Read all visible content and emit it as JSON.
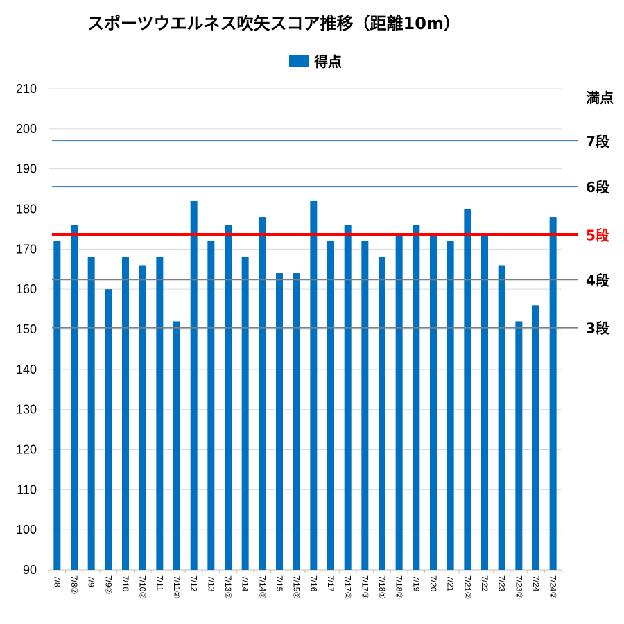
{
  "chart_data": {
    "type": "bar",
    "title": "スポーツウエルネス吹矢スコア推移（距離10m）",
    "series": [
      {
        "name": "得点",
        "color": "#0070C0",
        "values": [
          172,
          176,
          168,
          160,
          168,
          166,
          168,
          152,
          182,
          172,
          176,
          168,
          178,
          164,
          164,
          182,
          172,
          176,
          172,
          168,
          174,
          176,
          174,
          172,
          180,
          174,
          166,
          152,
          156,
          178
        ]
      }
    ],
    "categories": [
      "7/8",
      "7/8②",
      "7/9",
      "7/9②",
      "7/10",
      "7/10②",
      "7/11",
      "7/11②",
      "7/12",
      "7/13",
      "7/13②",
      "7/14",
      "7/14②",
      "7/15",
      "7/15②",
      "7/16",
      "7/17",
      "7/17②",
      "7/17③",
      "7/18①",
      "7/18②",
      "7/19",
      "7/20",
      "7/21",
      "7/21②",
      "7/22",
      "7/23",
      "7/23②",
      "7/24",
      "7/24②"
    ],
    "ylim": [
      90,
      210
    ],
    "yticks": [
      90,
      100,
      110,
      120,
      130,
      140,
      150,
      160,
      170,
      180,
      190,
      200,
      210
    ],
    "grid": true,
    "legend_position": "top-center",
    "reference_lines": [
      {
        "label": "満点",
        "value": 210,
        "color": "#D9D9D9",
        "label_color": "#000000",
        "width": 1
      },
      {
        "label": "7段",
        "value": 197,
        "color": "#2E75B6",
        "label_color": "#000000",
        "width": 2
      },
      {
        "label": "6段",
        "value": 185.6,
        "color": "#2E75B6",
        "label_color": "#000000",
        "width": 2
      },
      {
        "label": "5段",
        "value": 173.6,
        "color": "#FF0000",
        "label_color": "#FF0000",
        "width": 5
      },
      {
        "label": "4段",
        "value": 162.4,
        "color": "#7F7F7F",
        "label_color": "#000000",
        "width": 2
      },
      {
        "label": "3段",
        "value": 150.4,
        "color": "#7F7F7F",
        "label_color": "#000000",
        "width": 2
      }
    ]
  }
}
